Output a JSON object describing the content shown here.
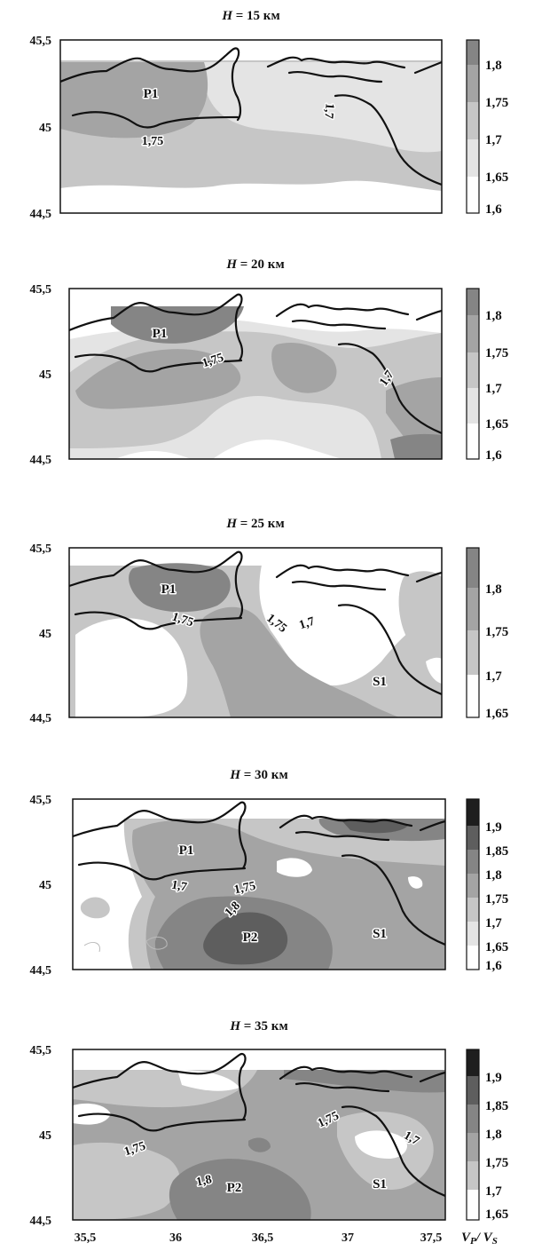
{
  "figure": {
    "y_ticks": [
      "45,5",
      "45",
      "44,5"
    ],
    "x_ticks": [
      "35,5",
      "36",
      "36,5",
      "37",
      "37,5"
    ],
    "colorbar_label": "Vp/Vs",
    "colorbar_label_main": "V",
    "colorbar_label_p": "P",
    "colorbar_label_slash": "/ V",
    "colorbar_label_s": "S",
    "colors": {
      "white": "#ffffff",
      "level_1": "#e4e4e4",
      "level_2": "#c6c6c6",
      "level_3": "#a4a4a4",
      "level_4": "#858585",
      "level_5": "#5e5e5e",
      "level_6": "#1e1e1e"
    }
  },
  "panels": [
    {
      "title_h": "H",
      "title_value": " = 15 км",
      "colorbar": [
        "1,8",
        "1,75",
        "1,7",
        "1,65",
        "1,6"
      ],
      "contour_labels": [
        "1,75",
        "1,7"
      ],
      "regions": [
        "P1"
      ]
    },
    {
      "title_h": "H",
      "title_value": " = 20 км",
      "colorbar": [
        "1,8",
        "1,75",
        "1,7",
        "1,65",
        "1,6"
      ],
      "contour_labels": [
        "1,75",
        "1,7"
      ],
      "regions": [
        "P1"
      ]
    },
    {
      "title_h": "H",
      "title_value": " = 25 км",
      "colorbar": [
        "1,8",
        "1,75",
        "1,7",
        "1,65"
      ],
      "contour_labels": [
        "1,75",
        "1,75",
        "1,7"
      ],
      "regions": [
        "P1",
        "S1"
      ]
    },
    {
      "title_h": "H",
      "title_value": " = 30 км",
      "colorbar": [
        "1,9",
        "1,85",
        "1,8",
        "1,75",
        "1,7",
        "1,65",
        "1,6"
      ],
      "contour_labels": [
        "1,7",
        "1,75",
        "1,8"
      ],
      "regions": [
        "P1",
        "P2",
        "S1"
      ]
    },
    {
      "title_h": "H",
      "title_value": " = 35 км",
      "colorbar": [
        "1,9",
        "1,85",
        "1,8",
        "1,75",
        "1,7",
        "1,65"
      ],
      "contour_labels": [
        "1,75",
        "1,75",
        "1,7",
        "1,8"
      ],
      "regions": [
        "P2",
        "S1"
      ]
    }
  ]
}
